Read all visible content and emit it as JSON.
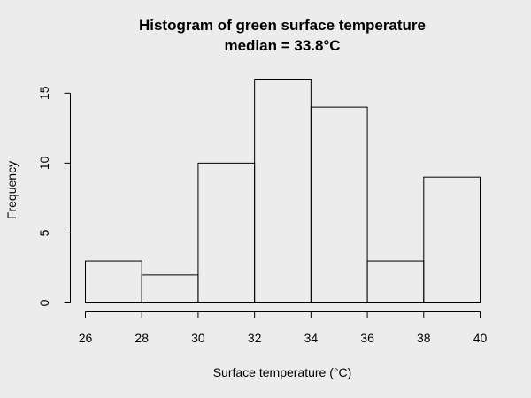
{
  "chart_data": {
    "type": "bar",
    "title": "Histogram of green surface temperature",
    "subtitle": "median = 33.8°C",
    "xlabel": "Surface temperature (°C)",
    "ylabel": "Frequency",
    "bins": [
      {
        "from": 26,
        "to": 28,
        "count": 3
      },
      {
        "from": 28,
        "to": 30,
        "count": 2
      },
      {
        "from": 30,
        "to": 32,
        "count": 10
      },
      {
        "from": 32,
        "to": 34,
        "count": 16
      },
      {
        "from": 34,
        "to": 36,
        "count": 14
      },
      {
        "from": 36,
        "to": 38,
        "count": 3
      },
      {
        "from": 38,
        "to": 40,
        "count": 9
      }
    ],
    "xlim": [
      26,
      40
    ],
    "ylim": [
      0,
      16
    ],
    "x_ticks": [
      "26",
      "28",
      "30",
      "32",
      "34",
      "36",
      "38",
      "40"
    ],
    "y_ticks": [
      "0",
      "5",
      "10",
      "15"
    ],
    "grid": false,
    "legend": "none"
  }
}
